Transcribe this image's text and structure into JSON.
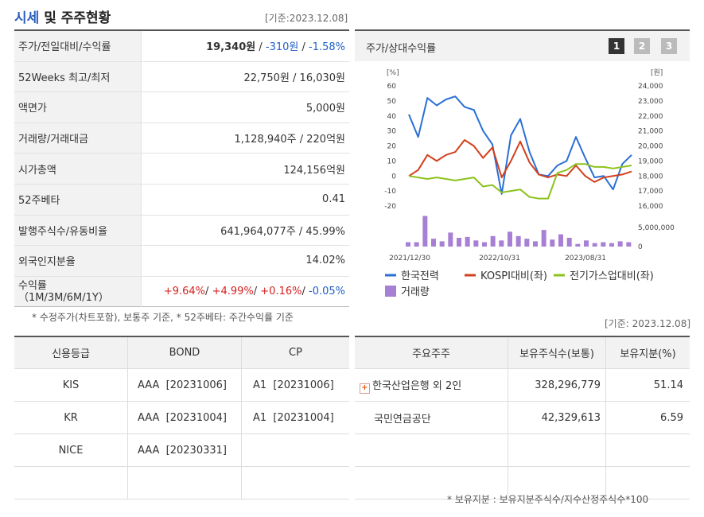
{
  "header": {
    "title_main": "시세",
    "title_rest": " 및 주주현황",
    "base_date": "[기준:2023.12.08]"
  },
  "quote": {
    "rows": [
      {
        "label": "주가/전일대비/수익률"
      },
      {
        "label": "52Weeks 최고/최저",
        "value": "22,750원 / 16,030원"
      },
      {
        "label": "액면가",
        "value": "5,000원"
      },
      {
        "label": "거래량/거래대금",
        "value": "1,128,940주 / 220억원"
      },
      {
        "label": "시가총액",
        "value": "124,156억원"
      },
      {
        "label": "52주베타",
        "value": "0.41"
      },
      {
        "label": "발행주식수/유동비율",
        "value": "641,964,077주 / 45.99%"
      },
      {
        "label": "외국인지분율",
        "value": "14.02%"
      },
      {
        "label": "수익률",
        "sublabel": "（1M/3M/6M/1Y）"
      }
    ],
    "price": "19,340원",
    "change": "-310원",
    "rate": "-1.58%",
    "sep": " / ",
    "returns": [
      "+9.64%",
      "+4.99%",
      "+0.16%",
      "-0.05%"
    ],
    "note": "* 수정주가(차트포함), 보통주 기준, * 52주베타: 주간수익률 기준"
  },
  "chart": {
    "title": "주가/상대수익률",
    "pages": [
      "1",
      "2",
      "3"
    ],
    "left_unit": "[%]",
    "right_unit": "[원]",
    "left_ticks": [
      "60",
      "50",
      "40",
      "30",
      "20",
      "10",
      "0",
      "-10",
      "-20"
    ],
    "right_ticks": [
      "24,000",
      "23,000",
      "22,000",
      "21,000",
      "20,000",
      "19,000",
      "18,000",
      "17,000",
      "16,000"
    ],
    "vol_ticks": [
      "5,000,000",
      "0"
    ],
    "x_labels": [
      "2021/12/30",
      "2022/10/31",
      "2023/08/31"
    ],
    "legend": [
      {
        "name": "한국전력",
        "color": "#2a6fd6"
      },
      {
        "name": "KOSPI대비(좌)",
        "color": "#d2401c"
      },
      {
        "name": "전기가스업대비(좌)",
        "color": "#8cc21e"
      },
      {
        "name": "거래량",
        "color": "#a77fd4"
      }
    ],
    "chart_data": {
      "type": "line",
      "left_ylim": [
        -20,
        60
      ],
      "series": [
        {
          "name": "한국전력",
          "values": [
            41,
            26,
            52,
            47,
            51,
            53,
            46,
            44,
            30,
            21,
            -12,
            27,
            38,
            16,
            1,
            0,
            7,
            10,
            26,
            12,
            -1,
            0,
            -9,
            8,
            14
          ]
        },
        {
          "name": "KOSPI대비(좌)",
          "values": [
            0,
            4,
            14,
            10,
            14,
            16,
            24,
            20,
            12,
            19,
            -1,
            10,
            23,
            9,
            1,
            -1,
            1,
            0,
            7,
            0,
            -4,
            -1,
            0,
            1,
            3
          ]
        },
        {
          "name": "전기가스업대비(좌)",
          "values": [
            0,
            -1,
            -2,
            -1,
            -2,
            -3,
            -2,
            -1,
            -7,
            -6,
            -11,
            -10,
            -9,
            -14,
            -15,
            -15,
            2,
            4,
            8,
            8,
            6,
            6,
            5,
            6,
            7
          ]
        }
      ],
      "volume": [
        0.25,
        0.25,
        1.75,
        0.45,
        0.3,
        0.8,
        0.5,
        0.55,
        0.35,
        0.25,
        0.6,
        0.35,
        0.85,
        0.6,
        0.45,
        0.3,
        0.95,
        0.4,
        0.7,
        0.5,
        0.15,
        0.35,
        0.2,
        0.25,
        0.2,
        0.3,
        0.25
      ]
    }
  },
  "credit": {
    "headers": [
      "신용등급",
      "BOND",
      "CP"
    ],
    "rows": [
      [
        "KIS",
        "AAA  [20231006]",
        "A1  [20231006]"
      ],
      [
        "KR",
        "AAA  [20231004]",
        "A1  [20231004]"
      ],
      [
        "NICE",
        "AAA  [20230331]",
        ""
      ],
      [
        "",
        "",
        ""
      ]
    ]
  },
  "holders": {
    "base_date": "[기준: 2023.12.08]",
    "headers": [
      "주요주주",
      "보유주식수(보통)",
      "보유지분(%)"
    ],
    "rows": [
      [
        "한국산업은행 외 2인",
        "328,296,779",
        "51.14"
      ],
      [
        "국민연금공단",
        "42,329,613",
        "6.59"
      ],
      [
        "",
        "",
        ""
      ],
      [
        "",
        "",
        ""
      ]
    ],
    "note": "* 보유지분 : 보유지분주식수/지수산정주식수*100"
  }
}
